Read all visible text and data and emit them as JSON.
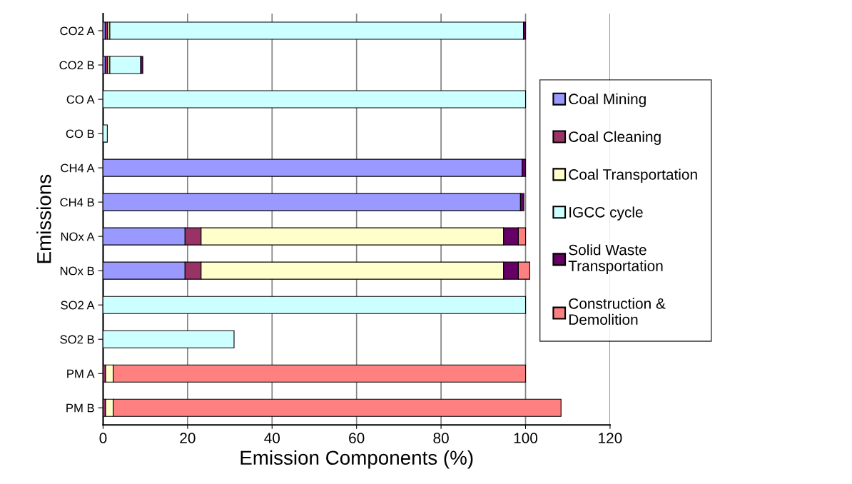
{
  "chart_data": {
    "type": "bar",
    "orientation": "horizontal",
    "stacked": true,
    "xlabel": "Emission Components (%)",
    "ylabel": "Emissions",
    "categories": [
      "CO2 A",
      "CO2 B",
      "CO A",
      "CO B",
      "CH4 A",
      "CH4 B",
      "NOx A",
      "NOx B",
      "SO2 A",
      "SO2 B",
      "PM A",
      "PM B"
    ],
    "series": [
      {
        "name": "Coal Mining",
        "color": "#9999ff",
        "values": [
          0.5,
          0.5,
          null,
          null,
          99.2,
          98.8,
          19.4,
          19.4,
          null,
          null,
          null,
          null
        ]
      },
      {
        "name": "Coal Cleaning",
        "color": "#993366",
        "values": [
          0.6,
          0.6,
          null,
          null,
          null,
          null,
          3.8,
          3.8,
          null,
          null,
          0.6,
          0.6
        ]
      },
      {
        "name": "Coal Transportation",
        "color": "#ffffcc",
        "values": [
          0.5,
          0.5,
          null,
          null,
          null,
          null,
          71.6,
          71.6,
          null,
          null,
          1.8,
          1.8
        ]
      },
      {
        "name": "IGCC cycle",
        "color": "#ccffff",
        "values": [
          97.9,
          7.3,
          100,
          1.0,
          null,
          null,
          null,
          null,
          100,
          31.0,
          null,
          null
        ]
      },
      {
        "name": "Solid Waste\nTransportation",
        "color": "#660066",
        "values": [
          0.5,
          0.5,
          null,
          null,
          0.8,
          0.8,
          3.5,
          3.5,
          null,
          null,
          null,
          null
        ]
      },
      {
        "name": "Construction &\nDemolition",
        "color": "#ff8080",
        "values": [
          null,
          null,
          null,
          null,
          null,
          null,
          1.7,
          2.7,
          null,
          null,
          97.6,
          106.0
        ]
      }
    ],
    "xlim": [
      0,
      120
    ],
    "xticks": [
      0,
      20,
      40,
      60,
      80,
      100,
      120
    ],
    "grid": "x",
    "legend": "right"
  }
}
